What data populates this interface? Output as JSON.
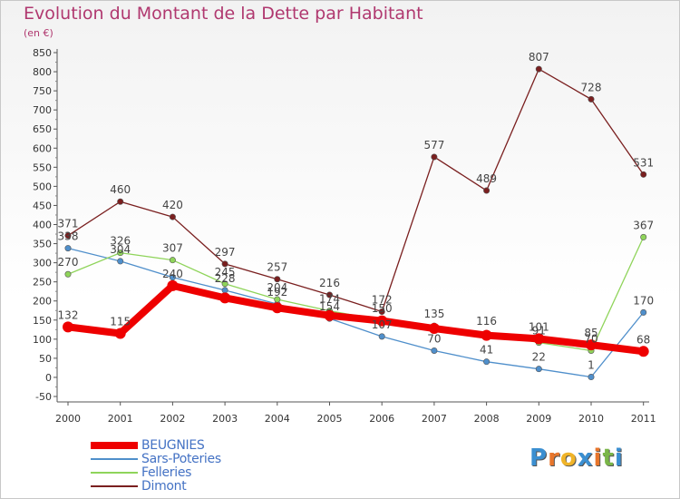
{
  "title": "Evolution du Montant de la Dette par Habitant",
  "subtitle": "(en €)",
  "logo": {
    "letters": [
      "P",
      "r",
      "o",
      "x",
      "i",
      "t",
      "i"
    ],
    "colors": [
      "#3b8fd1",
      "#e8762c",
      "#f0b429",
      "#3b8fd1",
      "#e8762c",
      "#7ab648",
      "#3b8fd1"
    ]
  },
  "chart_data": {
    "type": "line",
    "title": "Evolution du Montant de la Dette par Habitant",
    "ylabel": "(en €)",
    "xlabel": "",
    "x": [
      "2000",
      "2001",
      "2002",
      "2003",
      "2004",
      "2005",
      "2006",
      "2007",
      "2008",
      "2009",
      "2010",
      "2011"
    ],
    "ylim": [
      -50,
      850
    ],
    "yticks": [
      -50,
      0,
      50,
      100,
      150,
      200,
      250,
      300,
      350,
      400,
      450,
      500,
      550,
      600,
      650,
      700,
      750,
      800,
      850
    ],
    "grid": false,
    "legend": "bottom-left",
    "series": [
      {
        "name": "BEUGNIES",
        "color": "#ee0000",
        "values": [
          132,
          115,
          240,
          208,
          182,
          162,
          148,
          128,
          110,
          101,
          85,
          68
        ],
        "labels": [
          "132",
          "115",
          "240",
          "",
          "",
          "",
          "",
          "",
          "",
          "101",
          "85",
          "68"
        ]
      },
      {
        "name": "Sars-Poteries",
        "color": "#4f8fcb",
        "values": [
          338,
          304,
          262,
          228,
          192,
          154,
          107,
          70,
          41,
          22,
          1,
          170
        ],
        "labels": [
          "338",
          "304",
          "",
          "228",
          "192",
          "154",
          "107",
          "70",
          "41",
          "22",
          "1",
          "170"
        ]
      },
      {
        "name": "Felleries",
        "color": "#8fd45a",
        "values": [
          270,
          326,
          307,
          245,
          204,
          174,
          150,
          135,
          116,
          91,
          70,
          367
        ],
        "labels": [
          "270",
          "326",
          "307",
          "245",
          "204",
          "174",
          "150",
          "135",
          "116",
          "91",
          "70",
          "367"
        ]
      },
      {
        "name": "Dimont",
        "color": "#7a1f1f",
        "values": [
          371,
          460,
          420,
          297,
          257,
          216,
          172,
          577,
          489,
          807,
          728,
          531
        ],
        "labels": [
          "371",
          "460",
          "420",
          "297",
          "257",
          "216",
          "172",
          "577",
          "489",
          "807",
          "728",
          "531"
        ]
      }
    ]
  }
}
